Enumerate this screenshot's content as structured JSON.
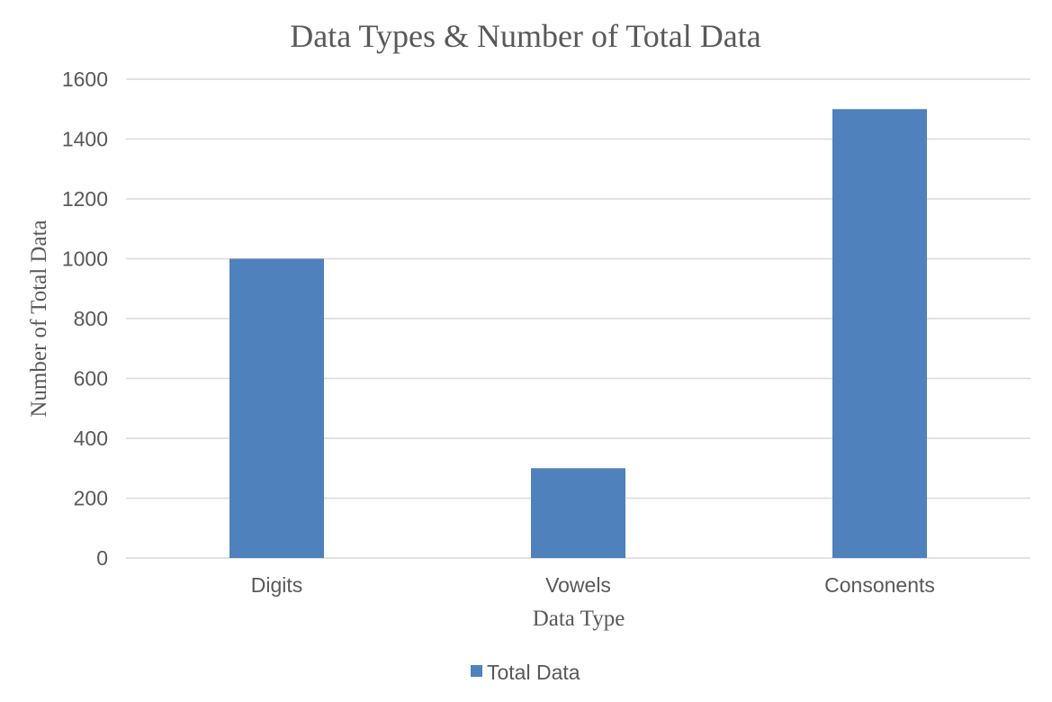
{
  "chart_data": {
    "type": "bar",
    "title": "Data Types & Number of Total Data",
    "xlabel": "Data Type",
    "ylabel": "Number of Total Data",
    "categories": [
      "Digits",
      "Vowels",
      "Consonents"
    ],
    "series": [
      {
        "name": "Total Data",
        "values": [
          1000,
          300,
          1500
        ],
        "color": "#4f81bd"
      }
    ],
    "ylim": [
      0,
      1600
    ],
    "yticks": [
      "0",
      "200",
      "400",
      "600",
      "800",
      "1000",
      "1200",
      "1400",
      "1600"
    ],
    "grid": true,
    "legend_position": "bottom"
  }
}
